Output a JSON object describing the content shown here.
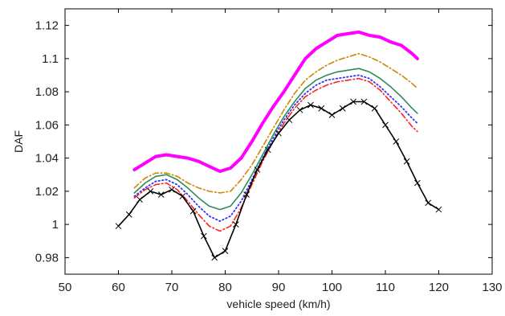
{
  "chart_data": {
    "type": "line",
    "title": "",
    "xlabel": "vehicle speed (km/h)",
    "ylabel": "DAF",
    "xlim": [
      50,
      130
    ],
    "ylim": [
      0.97,
      1.13
    ],
    "xticks": [
      50,
      60,
      70,
      80,
      90,
      100,
      110,
      120,
      130
    ],
    "xtick_labels": [
      "50",
      "60",
      "70",
      "80",
      "90",
      "100",
      "110",
      "120",
      "130"
    ],
    "yticks": [
      0.98,
      1.0,
      1.02,
      1.04,
      1.06,
      1.08,
      1.1,
      1.12
    ],
    "ytick_labels": [
      "0.98",
      "1",
      "1.02",
      "1.04",
      "1.06",
      "1.08",
      "1.1",
      "1.12"
    ],
    "grid": false,
    "legend": "none",
    "series": [
      {
        "color": "#ff00ff",
        "style": "solid-thick",
        "x": [
          63,
          65,
          67,
          69,
          71,
          73,
          75,
          77,
          79,
          81,
          83,
          85,
          87,
          89,
          91,
          93,
          95,
          97,
          99,
          101,
          103,
          105,
          107,
          109,
          111,
          113,
          115,
          116
        ],
        "y": [
          1.033,
          1.037,
          1.041,
          1.042,
          1.041,
          1.04,
          1.038,
          1.035,
          1.032,
          1.034,
          1.04,
          1.05,
          1.061,
          1.071,
          1.08,
          1.09,
          1.1,
          1.106,
          1.11,
          1.114,
          1.115,
          1.116,
          1.114,
          1.113,
          1.11,
          1.108,
          1.103,
          1.1
        ]
      },
      {
        "color": "#cc8800",
        "style": "dash-dot",
        "x": [
          63,
          65,
          67,
          69,
          71,
          73,
          75,
          77,
          79,
          81,
          83,
          85,
          87,
          89,
          91,
          93,
          95,
          97,
          99,
          101,
          103,
          105,
          107,
          109,
          111,
          113,
          115,
          116
        ],
        "y": [
          1.022,
          1.028,
          1.031,
          1.031,
          1.029,
          1.025,
          1.022,
          1.02,
          1.019,
          1.02,
          1.027,
          1.036,
          1.047,
          1.058,
          1.069,
          1.079,
          1.087,
          1.092,
          1.096,
          1.099,
          1.101,
          1.103,
          1.101,
          1.098,
          1.094,
          1.09,
          1.085,
          1.082
        ]
      },
      {
        "color": "#2e8b57",
        "style": "solid",
        "x": [
          63,
          65,
          67,
          69,
          71,
          73,
          75,
          77,
          79,
          81,
          83,
          85,
          87,
          89,
          91,
          93,
          95,
          97,
          99,
          101,
          103,
          105,
          107,
          109,
          111,
          113,
          115,
          116
        ],
        "y": [
          1.019,
          1.025,
          1.029,
          1.03,
          1.027,
          1.022,
          1.016,
          1.011,
          1.009,
          1.011,
          1.019,
          1.03,
          1.042,
          1.054,
          1.065,
          1.074,
          1.082,
          1.087,
          1.09,
          1.092,
          1.093,
          1.094,
          1.092,
          1.088,
          1.083,
          1.077,
          1.07,
          1.067
        ]
      },
      {
        "color": "#3333ff",
        "style": "dotted",
        "x": [
          63,
          65,
          67,
          69,
          71,
          73,
          75,
          77,
          79,
          81,
          83,
          85,
          87,
          89,
          91,
          93,
          95,
          97,
          99,
          101,
          103,
          105,
          107,
          109,
          111,
          113,
          115,
          116
        ],
        "y": [
          1.017,
          1.022,
          1.026,
          1.027,
          1.024,
          1.018,
          1.011,
          1.005,
          1.002,
          1.005,
          1.014,
          1.027,
          1.04,
          1.052,
          1.063,
          1.072,
          1.079,
          1.084,
          1.087,
          1.088,
          1.089,
          1.09,
          1.088,
          1.083,
          1.077,
          1.071,
          1.064,
          1.061
        ]
      },
      {
        "color": "#ff2222",
        "style": "dash-dot",
        "x": [
          63,
          65,
          67,
          69,
          71,
          73,
          75,
          77,
          79,
          81,
          83,
          85,
          87,
          89,
          91,
          93,
          95,
          97,
          99,
          101,
          103,
          105,
          107,
          109,
          111,
          113,
          115,
          116
        ],
        "y": [
          1.016,
          1.021,
          1.024,
          1.025,
          1.021,
          1.014,
          1.006,
          0.999,
          0.996,
          0.999,
          1.01,
          1.024,
          1.038,
          1.05,
          1.061,
          1.07,
          1.077,
          1.081,
          1.084,
          1.086,
          1.087,
          1.088,
          1.086,
          1.081,
          1.074,
          1.067,
          1.059,
          1.056
        ]
      },
      {
        "color": "#000000",
        "style": "solid-cross-markers",
        "x": [
          60,
          62,
          64,
          66,
          68,
          70,
          72,
          74,
          76,
          78,
          80,
          82,
          84,
          86,
          88,
          90,
          92,
          94,
          96,
          98,
          100,
          102,
          104,
          106,
          108,
          110,
          112,
          114,
          116,
          118,
          120
        ],
        "y": [
          0.999,
          1.006,
          1.015,
          1.02,
          1.018,
          1.021,
          1.017,
          1.008,
          0.993,
          0.98,
          0.984,
          1.0,
          1.018,
          1.033,
          1.045,
          1.055,
          1.063,
          1.069,
          1.072,
          1.07,
          1.066,
          1.07,
          1.074,
          1.074,
          1.07,
          1.06,
          1.05,
          1.038,
          1.025,
          1.013,
          1.009
        ]
      }
    ]
  }
}
